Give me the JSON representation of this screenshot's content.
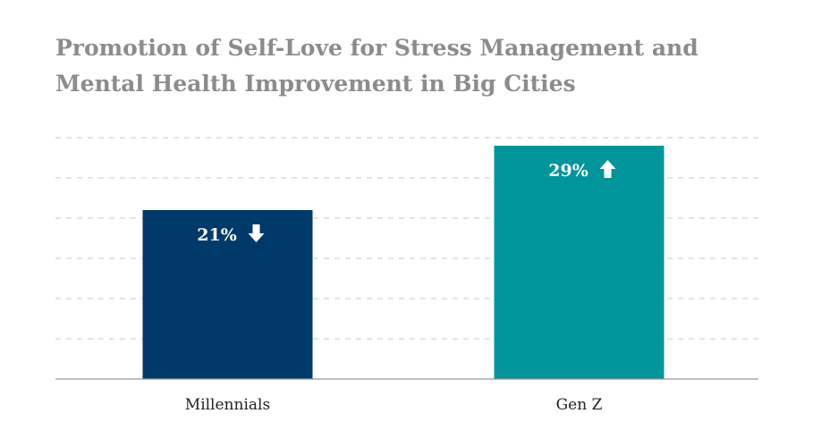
{
  "chart_data": {
    "type": "bar",
    "title": "Promotion of Self-Love for Stress Management and Mental Health Improvement in Big Cities",
    "categories": [
      "Millennials",
      "Gen Z"
    ],
    "values": [
      21,
      29
    ],
    "data_labels": [
      "21%",
      "29%"
    ],
    "trend_icons": [
      "arrow-down-icon",
      "arrow-up-icon"
    ],
    "colors": [
      "#003a6b",
      "#00959a"
    ],
    "ylim": [
      0,
      30
    ],
    "grid": true,
    "legend": "none"
  }
}
